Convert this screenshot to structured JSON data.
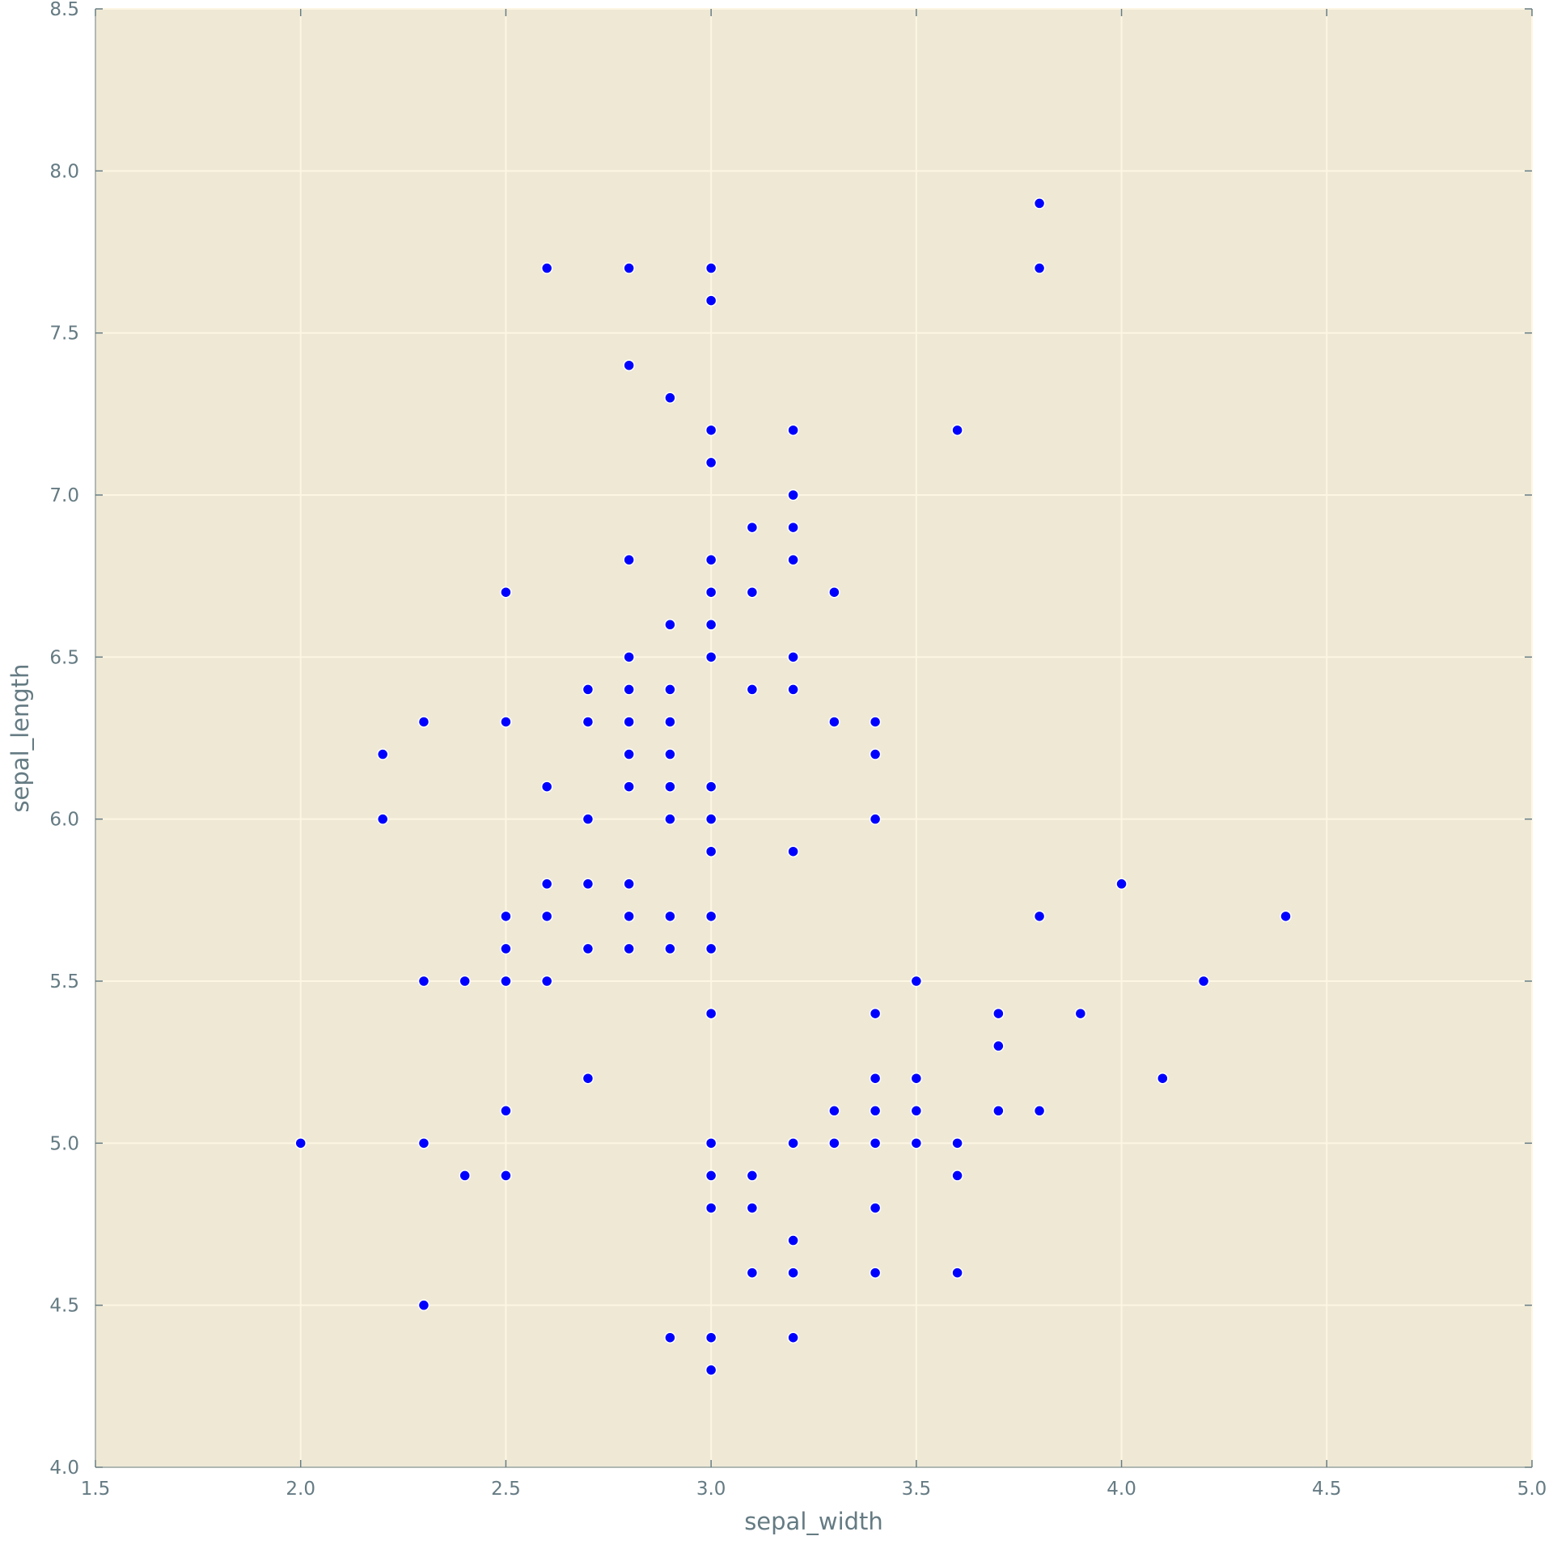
{
  "chart_data": {
    "type": "scatter",
    "title": "",
    "xlabel": "sepal_width",
    "ylabel": "sepal_length",
    "xlim": [
      1.5,
      5.0
    ],
    "ylim": [
      4.0,
      8.5
    ],
    "xticks": [
      1.5,
      2.0,
      2.5,
      3.0,
      3.5,
      4.0,
      4.5,
      5.0
    ],
    "yticks": [
      4.0,
      4.5,
      5.0,
      5.5,
      6.0,
      6.5,
      7.0,
      7.5,
      8.0,
      8.5
    ],
    "xtick_labels": [
      "1.5",
      "2.0",
      "2.5",
      "3.0",
      "3.5",
      "4.0",
      "4.5",
      "5.0"
    ],
    "ytick_labels": [
      "4.0",
      "4.5",
      "5.0",
      "5.5",
      "6.0",
      "6.5",
      "7.0",
      "7.5",
      "8.0",
      "8.5"
    ],
    "grid": true,
    "colors": {
      "plot_background": "#eee8d5",
      "grid": "#fdf6e3",
      "text": "#657b83",
      "marker": "#0000ff",
      "marker_edge": "#ffffff"
    },
    "points": [
      [
        3.8,
        7.9
      ],
      [
        2.6,
        7.7
      ],
      [
        2.8,
        7.7
      ],
      [
        3.0,
        7.7
      ],
      [
        3.8,
        7.7
      ],
      [
        3.0,
        7.6
      ],
      [
        2.8,
        7.4
      ],
      [
        2.9,
        7.3
      ],
      [
        3.0,
        7.2
      ],
      [
        3.2,
        7.2
      ],
      [
        3.6,
        7.2
      ],
      [
        3.0,
        7.1
      ],
      [
        3.2,
        7.0
      ],
      [
        3.1,
        6.9
      ],
      [
        3.2,
        6.9
      ],
      [
        2.8,
        6.8
      ],
      [
        3.0,
        6.8
      ],
      [
        3.2,
        6.8
      ],
      [
        2.5,
        6.7
      ],
      [
        3.0,
        6.7
      ],
      [
        3.1,
        6.7
      ],
      [
        3.3,
        6.7
      ],
      [
        2.9,
        6.6
      ],
      [
        3.0,
        6.6
      ],
      [
        2.8,
        6.5
      ],
      [
        3.0,
        6.5
      ],
      [
        3.2,
        6.5
      ],
      [
        2.7,
        6.4
      ],
      [
        2.8,
        6.4
      ],
      [
        2.9,
        6.4
      ],
      [
        3.1,
        6.4
      ],
      [
        3.2,
        6.4
      ],
      [
        2.3,
        6.3
      ],
      [
        2.5,
        6.3
      ],
      [
        2.7,
        6.3
      ],
      [
        2.8,
        6.3
      ],
      [
        2.9,
        6.3
      ],
      [
        3.3,
        6.3
      ],
      [
        3.4,
        6.3
      ],
      [
        2.2,
        6.2
      ],
      [
        2.8,
        6.2
      ],
      [
        2.9,
        6.2
      ],
      [
        3.4,
        6.2
      ],
      [
        2.6,
        6.1
      ],
      [
        2.8,
        6.1
      ],
      [
        2.9,
        6.1
      ],
      [
        3.0,
        6.1
      ],
      [
        2.2,
        6.0
      ],
      [
        2.7,
        6.0
      ],
      [
        2.9,
        6.0
      ],
      [
        3.0,
        6.0
      ],
      [
        3.4,
        6.0
      ],
      [
        3.0,
        5.9
      ],
      [
        3.2,
        5.9
      ],
      [
        2.6,
        5.8
      ],
      [
        2.7,
        5.8
      ],
      [
        2.8,
        5.8
      ],
      [
        4.0,
        5.8
      ],
      [
        2.5,
        5.7
      ],
      [
        2.6,
        5.7
      ],
      [
        2.8,
        5.7
      ],
      [
        2.9,
        5.7
      ],
      [
        3.0,
        5.7
      ],
      [
        3.8,
        5.7
      ],
      [
        4.4,
        5.7
      ],
      [
        2.5,
        5.6
      ],
      [
        2.7,
        5.6
      ],
      [
        2.8,
        5.6
      ],
      [
        2.9,
        5.6
      ],
      [
        3.0,
        5.6
      ],
      [
        2.3,
        5.5
      ],
      [
        2.4,
        5.5
      ],
      [
        2.5,
        5.5
      ],
      [
        2.6,
        5.5
      ],
      [
        3.5,
        5.5
      ],
      [
        4.2,
        5.5
      ],
      [
        3.0,
        5.4
      ],
      [
        3.4,
        5.4
      ],
      [
        3.7,
        5.4
      ],
      [
        3.9,
        5.4
      ],
      [
        3.7,
        5.3
      ],
      [
        2.7,
        5.2
      ],
      [
        3.4,
        5.2
      ],
      [
        3.5,
        5.2
      ],
      [
        4.1,
        5.2
      ],
      [
        2.5,
        5.1
      ],
      [
        3.3,
        5.1
      ],
      [
        3.4,
        5.1
      ],
      [
        3.5,
        5.1
      ],
      [
        3.7,
        5.1
      ],
      [
        3.8,
        5.1
      ],
      [
        2.0,
        5.0
      ],
      [
        2.3,
        5.0
      ],
      [
        3.0,
        5.0
      ],
      [
        3.2,
        5.0
      ],
      [
        3.3,
        5.0
      ],
      [
        3.4,
        5.0
      ],
      [
        3.5,
        5.0
      ],
      [
        3.6,
        5.0
      ],
      [
        2.4,
        4.9
      ],
      [
        2.5,
        4.9
      ],
      [
        3.0,
        4.9
      ],
      [
        3.1,
        4.9
      ],
      [
        3.6,
        4.9
      ],
      [
        3.0,
        4.8
      ],
      [
        3.1,
        4.8
      ],
      [
        3.4,
        4.8
      ],
      [
        3.2,
        4.7
      ],
      [
        3.1,
        4.6
      ],
      [
        3.2,
        4.6
      ],
      [
        3.4,
        4.6
      ],
      [
        3.6,
        4.6
      ],
      [
        2.3,
        4.5
      ],
      [
        2.9,
        4.4
      ],
      [
        3.0,
        4.4
      ],
      [
        3.2,
        4.4
      ],
      [
        3.0,
        4.3
      ]
    ]
  }
}
